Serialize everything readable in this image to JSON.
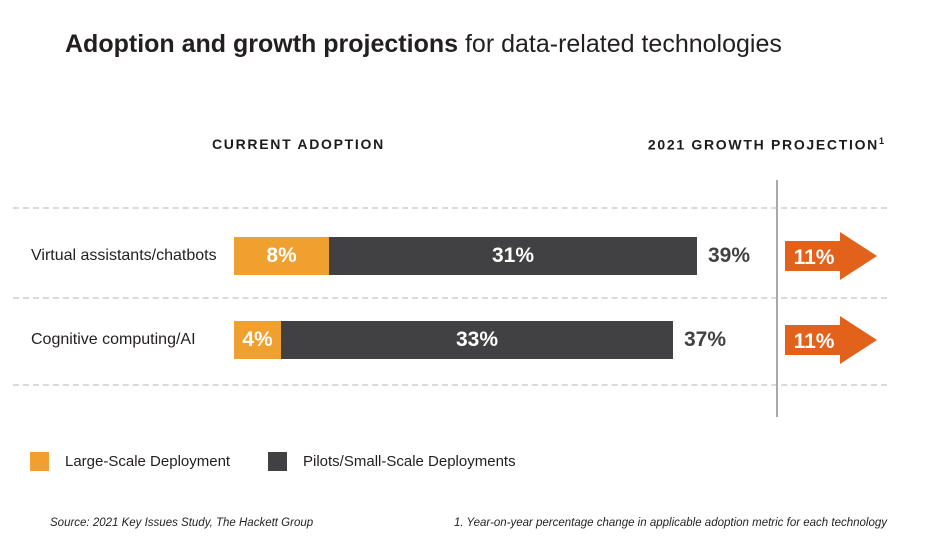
{
  "title": {
    "bold": "Adoption and growth projections",
    "regular": " for data-related technologies"
  },
  "columns": {
    "current": "CURRENT ADOPTION",
    "growth": "2021 GROWTH PROJECTION",
    "growth_superscript": "1"
  },
  "chart_data": {
    "type": "bar",
    "orientation": "horizontal",
    "title": "Adoption and growth projections for data-related technologies",
    "categories": [
      "Virtual assistants/chatbots",
      "Cognitive computing/AI"
    ],
    "series": [
      {
        "name": "Large-Scale Deployment",
        "color": "#F0A02E",
        "values": [
          8,
          4
        ]
      },
      {
        "name": "Pilots/Small-Scale Deployments",
        "color": "#414042",
        "values": [
          31,
          33
        ]
      }
    ],
    "totals": [
      39,
      37
    ],
    "growth_projection_2021": [
      11,
      11
    ],
    "value_suffix": "%",
    "arrow_color": "#E2621C",
    "grid": false,
    "legend_position": "bottom"
  },
  "legend": {
    "items": [
      {
        "label": "Large-Scale Deployment",
        "color": "#F0A02E"
      },
      {
        "label": "Pilots/Small-Scale Deployments",
        "color": "#414042"
      }
    ]
  },
  "footer": {
    "source": "Source: 2021 Key Issues Study, The Hackett Group",
    "footnote": "1. Year-on-year percentage change in applicable adoption metric for each technology"
  }
}
